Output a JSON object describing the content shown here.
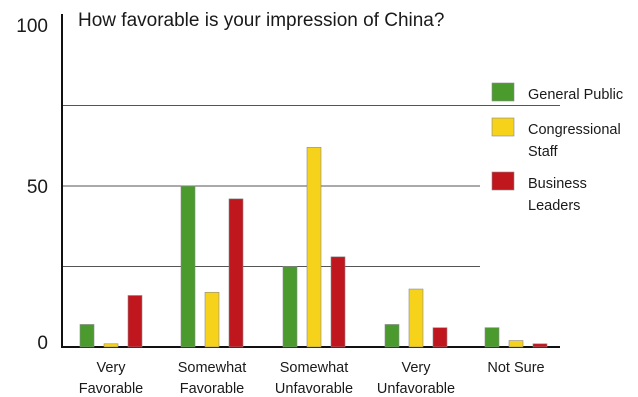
{
  "chart_data": {
    "type": "bar",
    "title": "How favorable is your impression of China?",
    "categories": [
      [
        "Very",
        "Favorable"
      ],
      [
        "Somewhat",
        "Favorable"
      ],
      [
        "Somewhat",
        "Unfavorable"
      ],
      [
        "Very",
        "Unfavorable"
      ],
      [
        "Not Sure"
      ]
    ],
    "series": [
      {
        "name": "General Public",
        "legend_lines": [
          "General Public"
        ],
        "color": "#4a9a2e",
        "values": [
          7,
          50,
          25,
          7,
          6
        ]
      },
      {
        "name": "Congressional Staff",
        "legend_lines": [
          "Congressional",
          "Staff"
        ],
        "color": "#f7d21a",
        "values": [
          1,
          17,
          62,
          18,
          2
        ]
      },
      {
        "name": "Business Leaders",
        "legend_lines": [
          "Business",
          "Leaders"
        ],
        "color": "#c0161e",
        "values": [
          16,
          46,
          28,
          6,
          1
        ]
      }
    ],
    "y_ticks": [
      0,
      50,
      100
    ],
    "gridlines": [
      25,
      50,
      75
    ],
    "ylim": [
      0,
      100
    ],
    "legend_position": "right",
    "grid": true
  }
}
